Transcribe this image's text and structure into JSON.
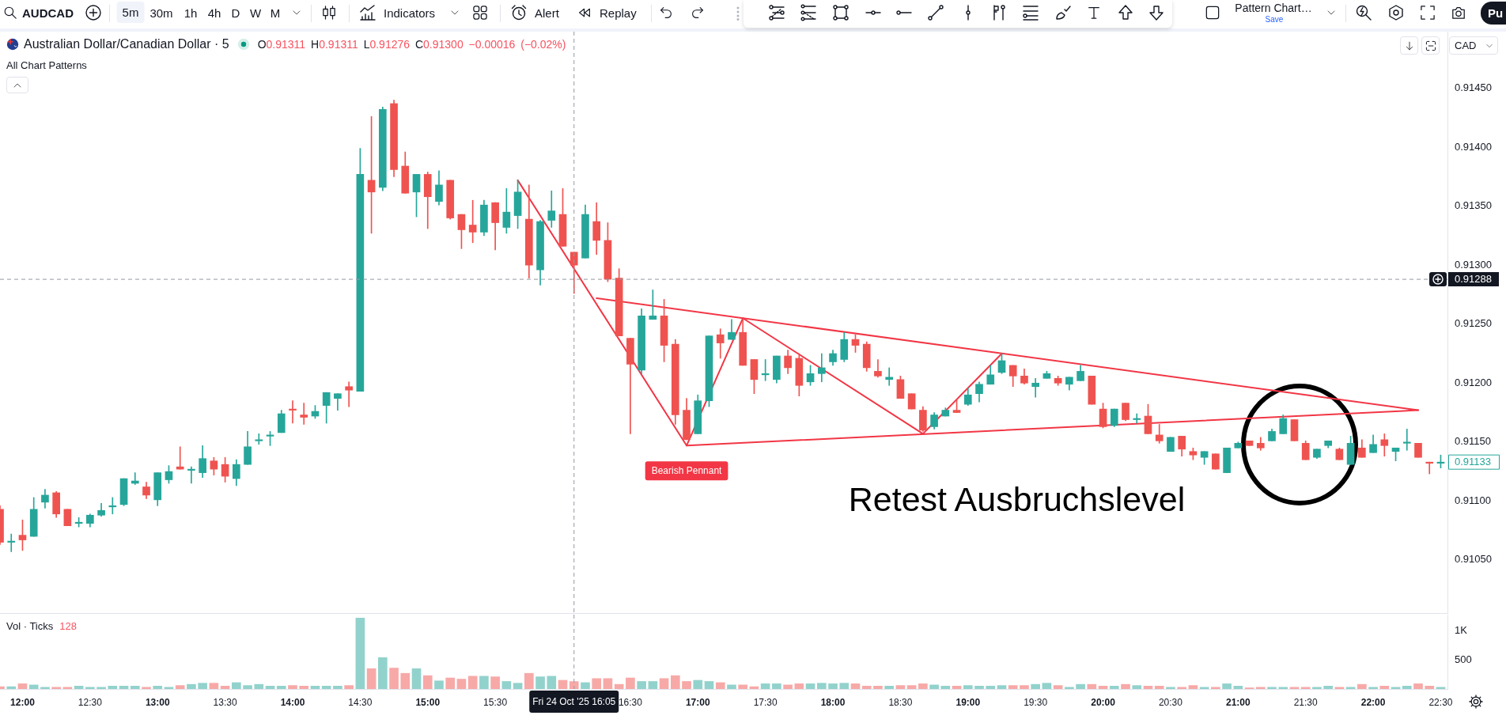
{
  "chart_data": [
    {
      "type": "other",
      "annotations": [
        "AUDCAD",
        "5m",
        "30m",
        "1h",
        "4h",
        "D",
        "W",
        "M",
        "Indicators",
        "Alert",
        "Replay",
        "Pattern Chart…",
        "Save",
        "Pu"
      ]
    },
    {
      "type": "candlestick",
      "title": "Australian Dollar/Canadian Dollar · 5",
      "subtitle": "All Chart Patterns",
      "ylabel": "CAD",
      "annotations": [
        "O0.91311 H0.91311 L0.91276 C0.91300 −0.00016 (−0.02%)",
        {
          "text": "Bearish Pennant",
          "x": 16.9167,
          "y": 0.91147
        },
        "Retest Ausbruchslevel",
        {
          "text": "0.91133",
          "x": 22.5,
          "y": 0.91133
        }
      ],
      "x": [
        11.8333,
        11.9167,
        12,
        12.0833,
        12.1667,
        12.25,
        12.3333,
        12.4167,
        12.5,
        12.5833,
        12.6667,
        12.75,
        12.8333,
        12.9167,
        13,
        13.0833,
        13.1667,
        13.25,
        13.3333,
        13.4167,
        13.5,
        13.5833,
        13.6667,
        13.75,
        13.8333,
        13.9167,
        14,
        14.0833,
        14.1667,
        14.25,
        14.3333,
        14.4167,
        14.5,
        14.5833,
        14.6667,
        14.75,
        14.8333,
        14.9167,
        15,
        15.0833,
        15.1667,
        15.25,
        15.3333,
        15.4167,
        15.5,
        15.5833,
        15.6667,
        15.75,
        15.8333,
        15.9167,
        16,
        16.0833,
        16.1667,
        16.25,
        16.3333,
        16.4167,
        16.5,
        16.5833,
        16.6667,
        16.75,
        16.8333,
        16.9167,
        17,
        17.0833,
        17.1667,
        17.25,
        17.3333,
        17.4167,
        17.5,
        17.5833,
        17.6667,
        17.75,
        17.8333,
        17.9167,
        18,
        18.0833,
        18.1667,
        18.25,
        18.3333,
        18.4167,
        18.5,
        18.5833,
        18.6667,
        18.75,
        18.8333,
        18.9167,
        19,
        19.0833,
        19.1667,
        19.25,
        19.3333,
        19.4167,
        19.5,
        19.5833,
        19.6667,
        19.75,
        19.8333,
        19.9167,
        20,
        20.0833,
        20.1667,
        20.25,
        20.3333,
        20.4167,
        20.5,
        20.5833,
        20.6667,
        20.75,
        20.8333,
        20.9167,
        21,
        21.0833,
        21.1667,
        21.25,
        21.3333,
        21.4167,
        21.5,
        21.5833,
        21.6667,
        21.75,
        21.8333,
        21.9167,
        22,
        22.0833,
        22.1667,
        22.25,
        22.3333,
        22.4167,
        22.5
      ],
      "ohlc": [
        [
          0.91093,
          0.91096,
          0.91063,
          0.91065
        ],
        [
          0.91065,
          0.91072,
          0.91057,
          0.91066
        ],
        [
          0.91071,
          0.91084,
          0.91058,
          0.91067
        ],
        [
          0.9107,
          0.91103,
          0.9107,
          0.91093
        ],
        [
          0.91099,
          0.9111,
          0.91094,
          0.91105
        ],
        [
          0.91107,
          0.91108,
          0.91086,
          0.91089
        ],
        [
          0.91093,
          0.91093,
          0.91079,
          0.91079
        ],
        [
          0.91081,
          0.91086,
          0.91078,
          0.91082
        ],
        [
          0.91081,
          0.91089,
          0.91078,
          0.91088
        ],
        [
          0.91088,
          0.91098,
          0.91087,
          0.91092
        ],
        [
          0.91095,
          0.91103,
          0.91089,
          0.91096
        ],
        [
          0.91097,
          0.91119,
          0.91096,
          0.91119
        ],
        [
          0.91115,
          0.91124,
          0.91114,
          0.91117
        ],
        [
          0.91112,
          0.91116,
          0.91102,
          0.91105
        ],
        [
          0.91101,
          0.91124,
          0.91096,
          0.91124
        ],
        [
          0.91118,
          0.9113,
          0.91115,
          0.91125
        ],
        [
          0.91129,
          0.91146,
          0.91127,
          0.91127
        ],
        [
          0.91126,
          0.91129,
          0.91115,
          0.91127
        ],
        [
          0.91124,
          0.91147,
          0.9112,
          0.91136
        ],
        [
          0.91134,
          0.91137,
          0.91122,
          0.91127
        ],
        [
          0.91131,
          0.91137,
          0.91116,
          0.91121
        ],
        [
          0.91119,
          0.91135,
          0.91113,
          0.91131
        ],
        [
          0.91131,
          0.91159,
          0.91131,
          0.91146
        ],
        [
          0.91151,
          0.91157,
          0.91148,
          0.91152
        ],
        [
          0.91155,
          0.91159,
          0.91147,
          0.91156
        ],
        [
          0.91158,
          0.91177,
          0.91158,
          0.91174
        ],
        [
          0.91178,
          0.91185,
          0.91166,
          0.91177
        ],
        [
          0.91173,
          0.91183,
          0.91165,
          0.91171
        ],
        [
          0.91172,
          0.91181,
          0.9117,
          0.91176
        ],
        [
          0.91181,
          0.91192,
          0.91166,
          0.91192
        ],
        [
          0.91187,
          0.91191,
          0.91177,
          0.91191
        ],
        [
          0.91197,
          0.91201,
          0.9118,
          0.91194
        ],
        [
          0.91193,
          0.91399,
          0.91193,
          0.91377
        ],
        [
          0.91372,
          0.91426,
          0.91327,
          0.91362
        ],
        [
          0.91366,
          0.91434,
          0.91363,
          0.91432
        ],
        [
          0.91437,
          0.9144,
          0.91375,
          0.91381
        ],
        [
          0.91384,
          0.91396,
          0.91361,
          0.91361
        ],
        [
          0.91362,
          0.91377,
          0.91341,
          0.91377
        ],
        [
          0.91377,
          0.91379,
          0.91331,
          0.91358
        ],
        [
          0.91354,
          0.9138,
          0.91351,
          0.91368
        ],
        [
          0.91372,
          0.91372,
          0.91339,
          0.9134
        ],
        [
          0.91343,
          0.91343,
          0.91314,
          0.9133
        ],
        [
          0.91334,
          0.91355,
          0.91319,
          0.91328
        ],
        [
          0.91328,
          0.91355,
          0.91325,
          0.91351
        ],
        [
          0.91353,
          0.91353,
          0.91313,
          0.91336
        ],
        [
          0.91332,
          0.91365,
          0.91327,
          0.91345
        ],
        [
          0.91342,
          0.91372,
          0.91331,
          0.91362
        ],
        [
          0.91339,
          0.91368,
          0.91289,
          0.913
        ],
        [
          0.91296,
          0.91338,
          0.91283,
          0.91337
        ],
        [
          0.91338,
          0.91363,
          0.91332,
          0.91346
        ],
        [
          0.91343,
          0.91365,
          0.91316,
          0.91316
        ],
        [
          0.91311,
          0.91311,
          0.91276,
          0.913
        ],
        [
          0.91306,
          0.91351,
          0.91306,
          0.91343
        ],
        [
          0.91337,
          0.91353,
          0.91309,
          0.91321
        ],
        [
          0.91321,
          0.91336,
          0.91286,
          0.91288
        ],
        [
          0.91289,
          0.91297,
          0.9124,
          0.9124
        ],
        [
          0.91238,
          0.91238,
          0.91157,
          0.91216
        ],
        [
          0.91211,
          0.91263,
          0.91208,
          0.91257
        ],
        [
          0.91254,
          0.91279,
          0.91254,
          0.91257
        ],
        [
          0.91257,
          0.91271,
          0.91218,
          0.91232
        ],
        [
          0.91233,
          0.91237,
          0.91165,
          0.91173
        ],
        [
          0.91177,
          0.91187,
          0.91152,
          0.91152
        ],
        [
          0.91157,
          0.9119,
          0.91157,
          0.91185
        ],
        [
          0.91185,
          0.9124,
          0.9118,
          0.9124
        ],
        [
          0.91241,
          0.91246,
          0.91221,
          0.91234
        ],
        [
          0.91237,
          0.91254,
          0.91237,
          0.91243
        ],
        [
          0.91243,
          0.91254,
          0.91215,
          0.91215
        ],
        [
          0.9122,
          0.9122,
          0.91191,
          0.91203
        ],
        [
          0.91207,
          0.9122,
          0.91202,
          0.91208
        ],
        [
          0.91203,
          0.91223,
          0.912,
          0.91223
        ],
        [
          0.91223,
          0.91228,
          0.91208,
          0.91213
        ],
        [
          0.91221,
          0.91225,
          0.91189,
          0.91198
        ],
        [
          0.91201,
          0.91215,
          0.91198,
          0.91208
        ],
        [
          0.91208,
          0.91225,
          0.91201,
          0.91213
        ],
        [
          0.91218,
          0.91228,
          0.91215,
          0.91225
        ],
        [
          0.9122,
          0.91243,
          0.91218,
          0.91237
        ],
        [
          0.91237,
          0.91241,
          0.91226,
          0.91232
        ],
        [
          0.91233,
          0.91235,
          0.9121,
          0.91213
        ],
        [
          0.9121,
          0.9122,
          0.91205,
          0.91206
        ],
        [
          0.91203,
          0.91213,
          0.91198,
          0.91205
        ],
        [
          0.91203,
          0.91206,
          0.91187,
          0.91187
        ],
        [
          0.91191,
          0.91191,
          0.91178,
          0.91178
        ],
        [
          0.91177,
          0.9118,
          0.91159,
          0.9116
        ],
        [
          0.91163,
          0.91175,
          0.91161,
          0.91173
        ],
        [
          0.91172,
          0.91179,
          0.91172,
          0.91177
        ],
        [
          0.91177,
          0.91186,
          0.91175,
          0.91175
        ],
        [
          0.91182,
          0.91196,
          0.91181,
          0.9119
        ],
        [
          0.91191,
          0.91201,
          0.91184,
          0.91199
        ],
        [
          0.91199,
          0.91215,
          0.91199,
          0.91207
        ],
        [
          0.91209,
          0.91225,
          0.91208,
          0.91219
        ],
        [
          0.91215,
          0.91215,
          0.91197,
          0.91206
        ],
        [
          0.91206,
          0.91212,
          0.91199,
          0.912
        ],
        [
          0.91197,
          0.91204,
          0.91188,
          0.912
        ],
        [
          0.91204,
          0.9121,
          0.91204,
          0.91208
        ],
        [
          0.91204,
          0.91206,
          0.91198,
          0.912
        ],
        [
          0.91199,
          0.91205,
          0.91194,
          0.91205
        ],
        [
          0.91202,
          0.91215,
          0.91202,
          0.9121
        ],
        [
          0.91206,
          0.91206,
          0.91182,
          0.91182
        ],
        [
          0.91178,
          0.91183,
          0.91162,
          0.91163
        ],
        [
          0.91164,
          0.91178,
          0.91163,
          0.91178
        ],
        [
          0.91183,
          0.91183,
          0.91168,
          0.91169
        ],
        [
          0.91169,
          0.91174,
          0.91166,
          0.9117
        ],
        [
          0.91172,
          0.91182,
          0.91157,
          0.91157
        ],
        [
          0.91156,
          0.91165,
          0.91149,
          0.91151
        ],
        [
          0.91142,
          0.91154,
          0.91142,
          0.91154
        ],
        [
          0.91155,
          0.91155,
          0.91138,
          0.91144
        ],
        [
          0.91142,
          0.91145,
          0.91135,
          0.91139
        ],
        [
          0.91137,
          0.91142,
          0.91131,
          0.91142
        ],
        [
          0.9114,
          0.9114,
          0.91127,
          0.91127
        ],
        [
          0.91124,
          0.91145,
          0.91124,
          0.91145
        ],
        [
          0.91145,
          0.9115,
          0.91145,
          0.91149
        ],
        [
          0.91151,
          0.91151,
          0.91147,
          0.91147
        ],
        [
          0.91149,
          0.91154,
          0.91143,
          0.91145
        ],
        [
          0.91151,
          0.91161,
          0.91151,
          0.91159
        ],
        [
          0.91157,
          0.91173,
          0.91157,
          0.9117
        ],
        [
          0.91169,
          0.91169,
          0.91151,
          0.91151
        ],
        [
          0.91149,
          0.91151,
          0.91135,
          0.91135
        ],
        [
          0.91137,
          0.91144,
          0.91136,
          0.91144
        ],
        [
          0.91147,
          0.91151,
          0.91145,
          0.91151
        ],
        [
          0.91144,
          0.91145,
          0.91135,
          0.91135
        ],
        [
          0.91131,
          0.91155,
          0.91131,
          0.91149
        ],
        [
          0.91145,
          0.91152,
          0.91137,
          0.91137
        ],
        [
          0.91141,
          0.91156,
          0.91141,
          0.91148
        ],
        [
          0.91152,
          0.91157,
          0.91138,
          0.91147
        ],
        [
          0.91142,
          0.91145,
          0.91134,
          0.91145
        ],
        [
          0.91149,
          0.91161,
          0.91143,
          0.9115
        ],
        [
          0.91149,
          0.91149,
          0.91137,
          0.91137
        ],
        [
          0.91133,
          0.91133,
          0.91123,
          0.91132
        ],
        [
          0.91132,
          0.91139,
          0.91128,
          0.91133
        ]
      ],
      "colors": [
        "#ef5350",
        "#26a69a",
        "#ef5350",
        "#26a69a",
        "#26a69a",
        "#ef5350",
        "#ef5350",
        "#26a69a",
        "#26a69a",
        "#26a69a",
        "#26a69a",
        "#26a69a",
        "#26a69a",
        "#ef5350",
        "#26a69a",
        "#26a69a",
        "#ef5350",
        "#26a69a",
        "#26a69a",
        "#ef5350",
        "#ef5350",
        "#26a69a",
        "#26a69a",
        "#26a69a",
        "#26a69a",
        "#26a69a",
        "#ef5350",
        "#ef5350",
        "#26a69a",
        "#26a69a",
        "#26a69a",
        "#ef5350",
        "#26a69a",
        "#ef5350",
        "#26a69a",
        "#ef5350",
        "#ef5350",
        "#26a69a",
        "#ef5350",
        "#26a69a",
        "#ef5350",
        "#ef5350",
        "#ef5350",
        "#26a69a",
        "#ef5350",
        "#26a69a",
        "#26a69a",
        "#ef5350",
        "#26a69a",
        "#26a69a",
        "#ef5350",
        "#ef5350",
        "#26a69a",
        "#ef5350",
        "#ef5350",
        "#ef5350",
        "#ef5350",
        "#26a69a",
        "#26a69a",
        "#ef5350",
        "#ef5350",
        "#ef5350",
        "#26a69a",
        "#26a69a",
        "#ef5350",
        "#26a69a",
        "#ef5350",
        "#ef5350",
        "#26a69a",
        "#26a69a",
        "#ef5350",
        "#ef5350",
        "#26a69a",
        "#26a69a",
        "#26a69a",
        "#26a69a",
        "#ef5350",
        "#ef5350",
        "#ef5350",
        "#26a69a",
        "#ef5350",
        "#ef5350",
        "#ef5350",
        "#26a69a",
        "#26a69a",
        "#ef5350",
        "#26a69a",
        "#26a69a",
        "#26a69a",
        "#26a69a",
        "#ef5350",
        "#ef5350",
        "#26a69a",
        "#26a69a",
        "#ef5350",
        "#26a69a",
        "#26a69a",
        "#ef5350",
        "#ef5350",
        "#26a69a",
        "#ef5350",
        "#26a69a",
        "#ef5350",
        "#ef5350",
        "#26a69a",
        "#ef5350",
        "#ef5350",
        "#26a69a",
        "#ef5350",
        "#26a69a",
        "#26a69a",
        "#ef5350",
        "#ef5350",
        "#26a69a",
        "#26a69a",
        "#ef5350",
        "#ef5350",
        "#26a69a",
        "#26a69a",
        "#ef5350",
        "#26a69a",
        "#ef5350",
        "#26a69a",
        "#ef5350",
        "#26a69a",
        "#26a69a",
        "#ef5350",
        "#ef5350",
        "#26a69a"
      ],
      "series": [
        {
          "type": "line",
          "color": "#f23645",
          "x": [
            15.6667,
            16.9167,
            17.3333,
            18.6667,
            19.25
          ],
          "values": [
            0.91372,
            0.91147,
            0.91255,
            0.91157,
            0.91225
          ]
        },
        {
          "type": "line",
          "color": "#f23645",
          "x": [
            16.25,
            22.3333
          ],
          "values": [
            0.91272,
            0.91177
          ]
        },
        {
          "type": "line",
          "color": "#f23645",
          "x": [
            16.9167,
            22.3333
          ],
          "values": [
            0.91147,
            0.91177
          ]
        }
      ],
      "xlim": [
        11.8333,
        22.55
      ],
      "ylim": [
        0.91005,
        0.91498
      ],
      "yticks": [
        {
          "value": 0.9105,
          "label": "0.91050"
        },
        {
          "value": 0.911,
          "label": "0.91100"
        },
        {
          "value": 0.9115,
          "label": "0.91150"
        },
        {
          "value": 0.912,
          "label": "0.91200"
        },
        {
          "value": 0.9125,
          "label": "0.91250"
        },
        {
          "value": 0.913,
          "label": "0.91300"
        },
        {
          "value": 0.9135,
          "label": "0.91350"
        },
        {
          "value": 0.914,
          "label": "0.91400"
        },
        {
          "value": 0.9145,
          "label": "0.91450"
        }
      ],
      "tick_labels": "y",
      "ref_lines": [
        {
          "axis": "x",
          "value": 16.0833,
          "color": "#9598a1",
          "line_style": "dashed"
        },
        {
          "axis": "y",
          "value": 0.91288,
          "label": "0.91288",
          "color": "#9598a1",
          "line_style": "dashed"
        }
      ]
    },
    {
      "type": "bar",
      "title": "Vol · Ticks",
      "annotations": [
        "128"
      ],
      "x": [
        11.8333,
        11.9167,
        12,
        12.0833,
        12.1667,
        12.25,
        12.3333,
        12.4167,
        12.5,
        12.5833,
        12.6667,
        12.75,
        12.8333,
        12.9167,
        13,
        13.0833,
        13.1667,
        13.25,
        13.3333,
        13.4167,
        13.5,
        13.5833,
        13.6667,
        13.75,
        13.8333,
        13.9167,
        14,
        14.0833,
        14.1667,
        14.25,
        14.3333,
        14.4167,
        14.5,
        14.5833,
        14.6667,
        14.75,
        14.8333,
        14.9167,
        15,
        15.0833,
        15.1667,
        15.25,
        15.3333,
        15.4167,
        15.5,
        15.5833,
        15.6667,
        15.75,
        15.8333,
        15.9167,
        16,
        16.0833,
        16.1667,
        16.25,
        16.3333,
        16.4167,
        16.5,
        16.5833,
        16.6667,
        16.75,
        16.8333,
        16.9167,
        17,
        17.0833,
        17.1667,
        17.25,
        17.3333,
        17.4167,
        17.5,
        17.5833,
        17.6667,
        17.75,
        17.8333,
        17.9167,
        18,
        18.0833,
        18.1667,
        18.25,
        18.3333,
        18.4167,
        18.5,
        18.5833,
        18.6667,
        18.75,
        18.8333,
        18.9167,
        19,
        19.0833,
        19.1667,
        19.25,
        19.3333,
        19.4167,
        19.5,
        19.5833,
        19.6667,
        19.75,
        19.8333,
        19.9167,
        20,
        20.0833,
        20.1667,
        20.25,
        20.3333,
        20.4167,
        20.5,
        20.5833,
        20.6667,
        20.75,
        20.8333,
        20.9167,
        21,
        21.0833,
        21.1667,
        21.25,
        21.3333,
        21.4167,
        21.5,
        21.5833,
        21.6667,
        21.75,
        21.8333,
        21.9167,
        22,
        22.0833,
        22.1667,
        22.25,
        22.3333,
        22.4167,
        22.5
      ],
      "values": [
        40,
        40,
        90,
        70,
        30,
        30,
        30,
        50,
        30,
        30,
        50,
        50,
        50,
        30,
        50,
        30,
        60,
        80,
        100,
        100,
        50,
        110,
        60,
        80,
        50,
        50,
        60,
        50,
        50,
        50,
        50,
        60,
        1220,
        350,
        540,
        360,
        270,
        350,
        230,
        140,
        190,
        170,
        220,
        220,
        210,
        130,
        100,
        270,
        210,
        220,
        150,
        128,
        110,
        180,
        180,
        80,
        190,
        130,
        130,
        180,
        230,
        130,
        150,
        130,
        110,
        70,
        70,
        40,
        90,
        90,
        70,
        90,
        90,
        100,
        90,
        100,
        90,
        50,
        50,
        50,
        60,
        60,
        90,
        70,
        50,
        50,
        60,
        50,
        50,
        60,
        60,
        60,
        80,
        100,
        60,
        30,
        80,
        80,
        50,
        50,
        80,
        60,
        50,
        50,
        30,
        30,
        60,
        30,
        30,
        90,
        50,
        20,
        30,
        30,
        30,
        30,
        30,
        30,
        50,
        30,
        30,
        80,
        30,
        50,
        30,
        50,
        90,
        50,
        30
      ],
      "colors": [
        "#f7a9a7",
        "#92d2cc",
        "#f7a9a7",
        "#92d2cc",
        "#92d2cc",
        "#f7a9a7",
        "#f7a9a7",
        "#92d2cc",
        "#92d2cc",
        "#92d2cc",
        "#92d2cc",
        "#92d2cc",
        "#92d2cc",
        "#f7a9a7",
        "#92d2cc",
        "#92d2cc",
        "#f7a9a7",
        "#92d2cc",
        "#92d2cc",
        "#f7a9a7",
        "#f7a9a7",
        "#92d2cc",
        "#92d2cc",
        "#92d2cc",
        "#92d2cc",
        "#92d2cc",
        "#f7a9a7",
        "#f7a9a7",
        "#92d2cc",
        "#92d2cc",
        "#92d2cc",
        "#f7a9a7",
        "#92d2cc",
        "#f7a9a7",
        "#92d2cc",
        "#f7a9a7",
        "#f7a9a7",
        "#92d2cc",
        "#f7a9a7",
        "#92d2cc",
        "#f7a9a7",
        "#f7a9a7",
        "#f7a9a7",
        "#92d2cc",
        "#f7a9a7",
        "#92d2cc",
        "#92d2cc",
        "#f7a9a7",
        "#92d2cc",
        "#92d2cc",
        "#f7a9a7",
        "#f7a9a7",
        "#92d2cc",
        "#f7a9a7",
        "#f7a9a7",
        "#f7a9a7",
        "#f7a9a7",
        "#92d2cc",
        "#92d2cc",
        "#f7a9a7",
        "#f7a9a7",
        "#f7a9a7",
        "#92d2cc",
        "#92d2cc",
        "#f7a9a7",
        "#92d2cc",
        "#f7a9a7",
        "#f7a9a7",
        "#92d2cc",
        "#92d2cc",
        "#f7a9a7",
        "#f7a9a7",
        "#92d2cc",
        "#92d2cc",
        "#92d2cc",
        "#92d2cc",
        "#f7a9a7",
        "#f7a9a7",
        "#f7a9a7",
        "#92d2cc",
        "#f7a9a7",
        "#f7a9a7",
        "#f7a9a7",
        "#92d2cc",
        "#92d2cc",
        "#f7a9a7",
        "#92d2cc",
        "#92d2cc",
        "#92d2cc",
        "#92d2cc",
        "#f7a9a7",
        "#f7a9a7",
        "#92d2cc",
        "#92d2cc",
        "#f7a9a7",
        "#92d2cc",
        "#92d2cc",
        "#f7a9a7",
        "#f7a9a7",
        "#92d2cc",
        "#f7a9a7",
        "#92d2cc",
        "#f7a9a7",
        "#f7a9a7",
        "#92d2cc",
        "#f7a9a7",
        "#f7a9a7",
        "#92d2cc",
        "#f7a9a7",
        "#92d2cc",
        "#92d2cc",
        "#f7a9a7",
        "#f7a9a7",
        "#92d2cc",
        "#92d2cc",
        "#f7a9a7",
        "#f7a9a7",
        "#92d2cc",
        "#92d2cc",
        "#f7a9a7",
        "#92d2cc",
        "#f7a9a7",
        "#92d2cc",
        "#f7a9a7",
        "#92d2cc",
        "#92d2cc",
        "#f7a9a7",
        "#f7a9a7",
        "#92d2cc"
      ],
      "xlim": [
        11.8333,
        22.55
      ],
      "ylim": [
        0,
        1280
      ],
      "xticks": [
        {
          "value": 12,
          "label": "12:00"
        },
        {
          "value": 12.5,
          "label": "12:30"
        },
        {
          "value": 13,
          "label": "13:00"
        },
        {
          "value": 13.5,
          "label": "13:30"
        },
        {
          "value": 14,
          "label": "14:00"
        },
        {
          "value": 14.5,
          "label": "14:30"
        },
        {
          "value": 15,
          "label": "15:00"
        },
        {
          "value": 15.5,
          "label": "15:30"
        },
        {
          "value": 16.5,
          "label": "16:30"
        },
        {
          "value": 17,
          "label": "17:00"
        },
        {
          "value": 17.5,
          "label": "17:30"
        },
        {
          "value": 18,
          "label": "18:00"
        },
        {
          "value": 18.5,
          "label": "18:30"
        },
        {
          "value": 19,
          "label": "19:00"
        },
        {
          "value": 19.5,
          "label": "19:30"
        },
        {
          "value": 20,
          "label": "20:00"
        },
        {
          "value": 20.5,
          "label": "20:30"
        },
        {
          "value": 21,
          "label": "21:00"
        },
        {
          "value": 21.5,
          "label": "21:30"
        },
        {
          "value": 22,
          "label": "22:00"
        },
        {
          "value": 22.5,
          "label": "22:30"
        }
      ],
      "yticks": [
        500,
        {
          "value": 1000,
          "label": "1K"
        }
      ],
      "ref_lines": [
        {
          "axis": "x",
          "value": 16.0833,
          "label": "Fri 24 Oct '25 16:05",
          "color": "#9598a1",
          "line_style": "dashed"
        }
      ]
    }
  ]
}
